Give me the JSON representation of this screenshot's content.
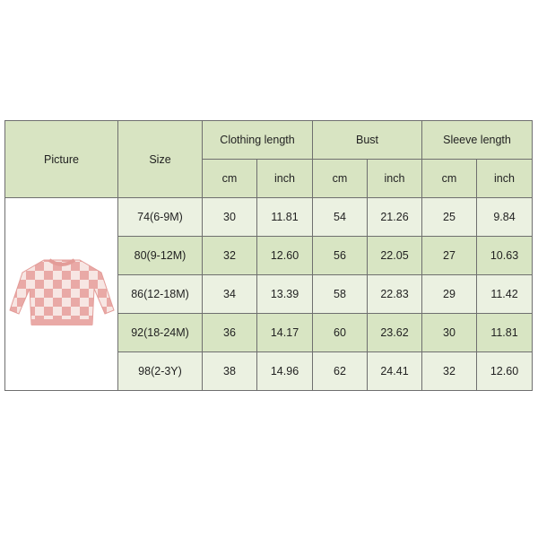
{
  "headers": {
    "picture": "Picture",
    "size": "Size",
    "clothing_length": "Clothing length",
    "bust": "Bust",
    "sleeve_length": "Sleeve length",
    "cm": "cm",
    "inch": "inch"
  },
  "rows": [
    {
      "size": "74(6-9M)",
      "cl_cm": "30",
      "cl_in": "11.81",
      "b_cm": "54",
      "b_in": "21.26",
      "s_cm": "25",
      "s_in": "9.84"
    },
    {
      "size": "80(9-12M)",
      "cl_cm": "32",
      "cl_in": "12.60",
      "b_cm": "56",
      "b_in": "22.05",
      "s_cm": "27",
      "s_in": "10.63"
    },
    {
      "size": "86(12-18M)",
      "cl_cm": "34",
      "cl_in": "13.39",
      "b_cm": "58",
      "b_in": "22.83",
      "s_cm": "29",
      "s_in": "11.42"
    },
    {
      "size": "92(18-24M)",
      "cl_cm": "36",
      "cl_in": "14.17",
      "b_cm": "60",
      "b_in": "23.62",
      "s_cm": "30",
      "s_in": "11.81"
    },
    {
      "size": "98(2-3Y)",
      "cl_cm": "38",
      "cl_in": "14.96",
      "b_cm": "62",
      "b_in": "24.41",
      "s_cm": "32",
      "s_in": "12.60"
    }
  ],
  "colors": {
    "header": "#d8e4c2",
    "row_light": "#ebf1e1",
    "row_dark": "#d8e5c3",
    "sweater_pink": "#e9a9a6"
  }
}
